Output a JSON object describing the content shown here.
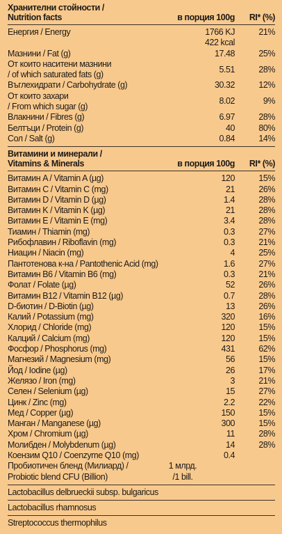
{
  "header": {
    "title": [
      "Хранителни стойности /",
      "Nutrition facts"
    ],
    "per_portion": "в порция 100g",
    "ri": "RI* (%)"
  },
  "nutrition": [
    {
      "name": [
        "Енергия / Energy"
      ],
      "amount": [
        "1766 KJ",
        "422 kcal"
      ],
      "ri": "21%"
    },
    {
      "name": [
        "Мазнини / Fat (g)"
      ],
      "amount": [
        "17.48"
      ],
      "ri": "25%"
    },
    {
      "name": [
        "От които наситени мазнини",
        "/ of which saturated fats (g)"
      ],
      "amount": [
        "5.51"
      ],
      "ri": "28%"
    },
    {
      "name": [
        "Въглехидрати / Carbohydrate (g)"
      ],
      "amount": [
        "30.32"
      ],
      "ri": "12%"
    },
    {
      "name": [
        "От които захари",
        "/ From which sugar (g)"
      ],
      "amount": [
        "8.02"
      ],
      "ri": "9%"
    },
    {
      "name": [
        "Влакнини / Fibres (g)"
      ],
      "amount": [
        "6.97"
      ],
      "ri": "28%"
    },
    {
      "name": [
        "Белтъци / Protein (g)"
      ],
      "amount": [
        "40"
      ],
      "ri": "80%"
    },
    {
      "name": [
        "Сол / Salt (g)"
      ],
      "amount": [
        "0.84"
      ],
      "ri": "14%"
    }
  ],
  "vitamins_header": {
    "title": [
      "Витамини и минерали /",
      "Vitamins & Minerals"
    ],
    "per_portion": "в порция 100g",
    "ri": "RI* (%)"
  },
  "vitamins": [
    {
      "name": [
        "Витамин A / Vitamin A (µg)"
      ],
      "amount": [
        "120"
      ],
      "ri": "15%"
    },
    {
      "name": [
        "Витамин C / Vitamin C (mg)"
      ],
      "amount": [
        "21"
      ],
      "ri": "26%"
    },
    {
      "name": [
        "Витамин D / Vitamin D (µg)"
      ],
      "amount": [
        "1.4"
      ],
      "ri": "28%"
    },
    {
      "name": [
        "Витамин K / Vitamin K (µg)"
      ],
      "amount": [
        "21"
      ],
      "ri": "28%"
    },
    {
      "name": [
        "Витамин E / Vitamin E (mg)"
      ],
      "amount": [
        "3.4"
      ],
      "ri": "28%"
    },
    {
      "name": [
        "Тиамин / Thiamin (mg)"
      ],
      "amount": [
        "0.3"
      ],
      "ri": "27%"
    },
    {
      "name": [
        "Рибофлавин / Riboflavin (mg)"
      ],
      "amount": [
        "0.3"
      ],
      "ri": "21%"
    },
    {
      "name": [
        "Ниацин / Niacin (mg)"
      ],
      "amount": [
        "4"
      ],
      "ri": "25%"
    },
    {
      "name": [
        "Пантотенова к-на / Pantothenic Acid (mg)"
      ],
      "amount": [
        "1.6"
      ],
      "ri": "27%"
    },
    {
      "name": [
        "Витамин B6 / Vitamin B6 (mg)"
      ],
      "amount": [
        "0.3"
      ],
      "ri": "21%"
    },
    {
      "name": [
        "Фолат / Folate (µg)"
      ],
      "amount": [
        "52"
      ],
      "ri": "26%"
    },
    {
      "name": [
        "Витамин B12 / Vitamin B12 (µg)"
      ],
      "amount": [
        "0.7"
      ],
      "ri": "28%"
    },
    {
      "name": [
        "D-биотин / D-Biotin (µg)"
      ],
      "amount": [
        "13"
      ],
      "ri": "26%"
    },
    {
      "name": [
        "Калий / Potassium (mg)"
      ],
      "amount": [
        "320"
      ],
      "ri": "16%"
    },
    {
      "name": [
        "Хлорид / Chloride (mg)"
      ],
      "amount": [
        "120"
      ],
      "ri": "15%"
    },
    {
      "name": [
        "Калций / Calcium (mg)"
      ],
      "amount": [
        "120"
      ],
      "ri": "15%"
    },
    {
      "name": [
        "Фосфор / Phosphorus (mg)"
      ],
      "amount": [
        "431"
      ],
      "ri": "62%"
    },
    {
      "name": [
        "Магнезий / Magnesium (mg)"
      ],
      "amount": [
        "56"
      ],
      "ri": "15%"
    },
    {
      "name": [
        "Йод / Iodine (µg)"
      ],
      "amount": [
        "26"
      ],
      "ri": "17%"
    },
    {
      "name": [
        "Желязо / Iron (mg)"
      ],
      "amount": [
        "3"
      ],
      "ri": "21%"
    },
    {
      "name": [
        "Селен / Selenium (µg)"
      ],
      "amount": [
        "15"
      ],
      "ri": "27%"
    },
    {
      "name": [
        "Цинк / Zinc (mg)"
      ],
      "amount": [
        "2.2"
      ],
      "ri": "22%"
    },
    {
      "name": [
        "Мед / Copper (µg)"
      ],
      "amount": [
        "150"
      ],
      "ri": "15%"
    },
    {
      "name": [
        "Манган / Manganese (µg)"
      ],
      "amount": [
        "300"
      ],
      "ri": "15%"
    },
    {
      "name": [
        "Хром / Chromium (µg)"
      ],
      "amount": [
        "11"
      ],
      "ri": "28%"
    },
    {
      "name": [
        "Молибден / Molybdenum (µg)"
      ],
      "amount": [
        "14"
      ],
      "ri": "28%"
    },
    {
      "name": [
        "Коензим Q10 / Coenzyme Q10 (mg)"
      ],
      "amount": [
        "0.4"
      ]
    }
  ],
  "probiotic": {
    "name": [
      "Пробиотичен бленд  (Милиард) /",
      "Probiotic blend CFU (Billion)"
    ],
    "amount": [
      "1 млрд.",
      "/1 bill."
    ]
  },
  "strains": [
    "Lactobacillus delbrueckii subsp. bulgaricus",
    "Lactobacillus rhamnosus",
    "Streptococcus thermophilus"
  ]
}
